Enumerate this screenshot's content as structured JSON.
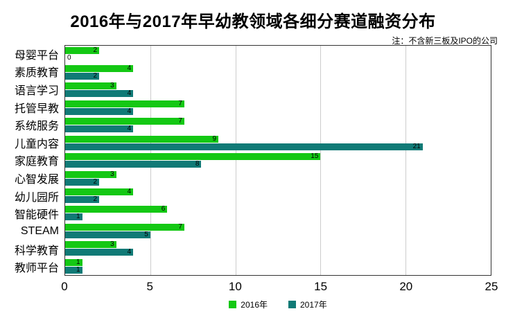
{
  "title": "2016年与2017年早幼教领域各细分赛道融资分布",
  "note": "注：不含新三板及IPO的公司",
  "chart_data": {
    "type": "bar",
    "orientation": "horizontal",
    "title": "2016年与2017年早幼教领域各细分赛道融资分布",
    "note": "注：不含新三板及IPO的公司",
    "categories": [
      "母婴平台",
      "素质教育",
      "语言学习",
      "托管早教",
      "系统服务",
      "儿童内容",
      "家庭教育",
      "心智发展",
      "幼儿园所",
      "智能硬件",
      "STEAM",
      "科学教育",
      "教师平台"
    ],
    "series": [
      {
        "name": "2016年",
        "color": "#14C814",
        "values": [
          2,
          4,
          3,
          7,
          7,
          9,
          15,
          3,
          4,
          6,
          7,
          3,
          1
        ]
      },
      {
        "name": "2017年",
        "color": "#107A76",
        "values": [
          0,
          2,
          4,
          4,
          4,
          21,
          8,
          2,
          2,
          1,
          5,
          4,
          1
        ]
      }
    ],
    "xlim": [
      0,
      25
    ],
    "x_ticks": [
      0,
      5,
      10,
      15,
      20,
      25
    ],
    "grid": true,
    "legend_position": "bottom",
    "bar_label_color": "#000000",
    "gridline_color": "#cccccc",
    "frame_color": "#333333"
  }
}
